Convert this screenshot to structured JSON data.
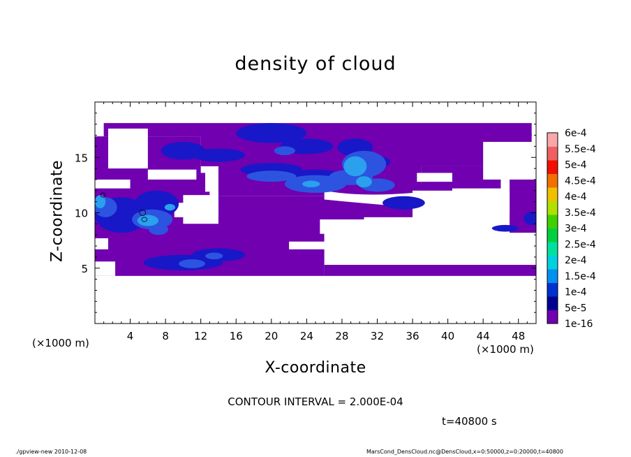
{
  "title": "density of cloud",
  "footer": {
    "left": "./gpview-new   2010-12-08",
    "right": "MarsCond_DensCloud.nc@DensCloud,x=0:50000,z=0:20000,t=40800"
  },
  "contour_interval": "CONTOUR INTERVAL = 2.000E-04",
  "time_label": "t=40800 s",
  "chart_data": {
    "type": "heatmap",
    "title": "density of cloud",
    "xlabel": "X-coordinate",
    "ylabel": "Z-coordinate",
    "x_unit_label": "(×1000 m)",
    "x_unit_label_right": "(×1000 m)",
    "xlim": [
      0,
      50
    ],
    "ylim": [
      0,
      20
    ],
    "x_ticks": [
      4,
      8,
      12,
      16,
      20,
      24,
      28,
      32,
      36,
      40,
      44,
      48
    ],
    "y_ticks": [
      5,
      10,
      15
    ],
    "colorbar": {
      "labels": [
        "1e-16",
        "5e-5",
        "1e-4",
        "1.5e-4",
        "2e-4",
        "2.5e-4",
        "3e-4",
        "3.5e-4",
        "4e-4",
        "4.5e-4",
        "5e-4",
        "5.5e-4",
        "6e-4"
      ],
      "colors": [
        "#7000b0",
        "#000090",
        "#0030d0",
        "#0090f0",
        "#00d0e0",
        "#00e0a0",
        "#00d040",
        "#40d000",
        "#b0e000",
        "#f0c000",
        "#f07000",
        "#f01000",
        "#f06060",
        "#f8a8a8"
      ]
    },
    "field_levels": [
      "background",
      "weak",
      "moderate",
      "strong"
    ],
    "field_colors": {
      "background": "#7000b0",
      "weak": "#1818c8",
      "moderate": "#2c54e0",
      "strong": "#2aa0ee"
    }
  }
}
